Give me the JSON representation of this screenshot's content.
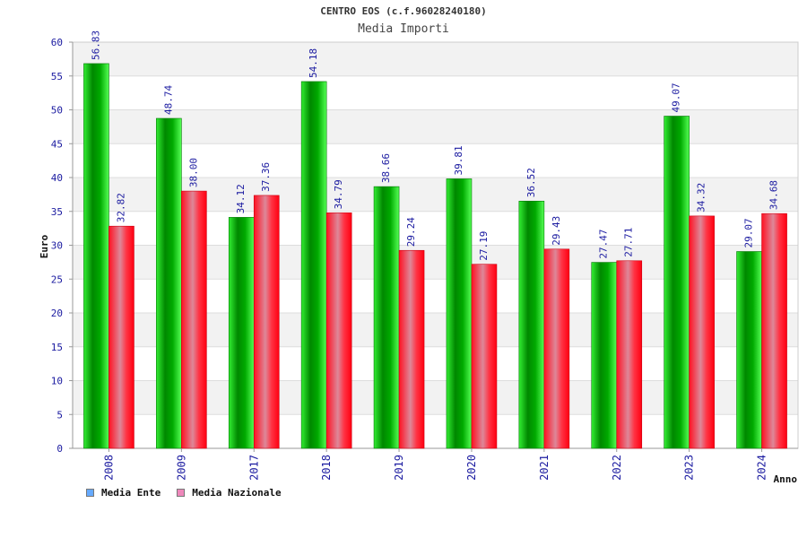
{
  "chart_data": {
    "type": "bar",
    "title": "CENTRO EOS (c.f.96028240180)",
    "subtitle": "Media Importi",
    "xlabel": "Anno",
    "ylabel": "Euro",
    "ylim": [
      0,
      60
    ],
    "yticks": [
      0,
      5,
      10,
      15,
      20,
      25,
      30,
      35,
      40,
      45,
      50,
      55,
      60
    ],
    "grid": true,
    "legend_position": "bottom-left",
    "categories": [
      "2008",
      "2009",
      "2017",
      "2018",
      "2019",
      "2020",
      "2021",
      "2022",
      "2023",
      "2024"
    ],
    "series": [
      {
        "name": "Media Ente",
        "color": "#00cc00",
        "legend_color": "#66aaff",
        "values": [
          56.83,
          48.74,
          34.12,
          54.18,
          38.66,
          39.81,
          36.52,
          27.47,
          49.07,
          29.07
        ],
        "labels": [
          "56.83",
          "48.74",
          "34.12",
          "54.18",
          "38.66",
          "39.81",
          "36.52",
          "27.47",
          "49.07",
          "29.07"
        ]
      },
      {
        "name": "Media Nazionale",
        "color": "#ff2233",
        "legend_color": "#ee88bb",
        "values": [
          32.82,
          38.0,
          37.36,
          34.79,
          29.24,
          27.19,
          29.43,
          27.71,
          34.32,
          34.68
        ],
        "labels": [
          "32.82",
          "38.00",
          "37.36",
          "34.79",
          "29.24",
          "27.19",
          "29.43",
          "27.71",
          "34.32",
          "34.68"
        ]
      }
    ]
  }
}
